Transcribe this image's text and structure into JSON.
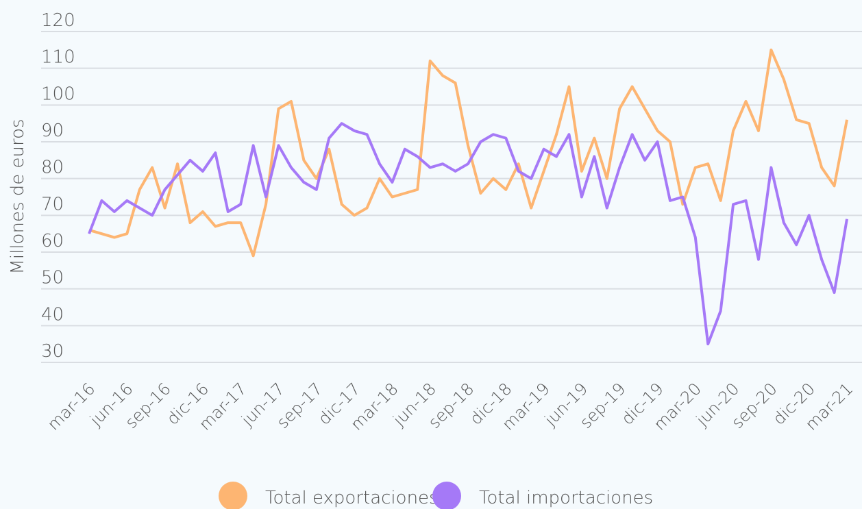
{
  "chart_data": {
    "type": "line",
    "ylabel": "Millones de euros",
    "categories": [
      "mar-16",
      null,
      null,
      "jun-16",
      null,
      null,
      "sep-16",
      null,
      null,
      "dic-16",
      null,
      null,
      "mar-17",
      null,
      null,
      "jun-17",
      null,
      null,
      "sep-17",
      null,
      null,
      "dic-17",
      null,
      null,
      "mar-18",
      null,
      null,
      "jun-18",
      null,
      null,
      "sep-18",
      null,
      null,
      "dic-18",
      null,
      null,
      "mar-19",
      null,
      null,
      "jun-19",
      null,
      null,
      "sep-19",
      null,
      null,
      "dic-19",
      null,
      null,
      "mar-20",
      null,
      null,
      "jun-20",
      null,
      null,
      "sep-20",
      null,
      null,
      "dic-20",
      null,
      null,
      "mar-21"
    ],
    "series": [
      {
        "name": "Total exportaciones",
        "color": "#fdb572",
        "values": [
          66,
          65,
          64,
          65,
          77,
          83,
          72,
          84,
          68,
          71,
          67,
          68,
          68,
          59,
          73,
          99,
          101,
          85,
          80,
          88,
          73,
          70,
          72,
          80,
          75,
          76,
          77,
          112,
          108,
          106,
          89,
          76,
          80,
          77,
          84,
          72,
          82,
          92,
          105,
          82,
          91,
          80,
          99,
          105,
          99,
          93,
          90,
          73,
          83,
          84,
          74,
          93,
          101,
          93,
          115,
          107,
          96,
          95,
          83,
          78,
          96
        ]
      },
      {
        "name": "Total importaciones",
        "color": "#a579f7",
        "values": [
          65,
          74,
          71,
          74,
          72,
          70,
          77,
          81,
          85,
          82,
          87,
          71,
          73,
          89,
          75,
          89,
          83,
          79,
          77,
          91,
          95,
          93,
          92,
          84,
          79,
          88,
          86,
          83,
          84,
          82,
          84,
          90,
          92,
          91,
          82,
          80,
          88,
          86,
          92,
          75,
          86,
          72,
          83,
          92,
          85,
          90,
          74,
          75,
          64,
          35,
          44,
          73,
          74,
          58,
          83,
          68,
          62,
          70,
          58,
          49,
          69
        ]
      }
    ],
    "ylim": [
      30,
      120
    ],
    "yticks": [
      30,
      40,
      50,
      60,
      70,
      80,
      90,
      100,
      110,
      120
    ],
    "grid": true,
    "legend": "bottom"
  }
}
